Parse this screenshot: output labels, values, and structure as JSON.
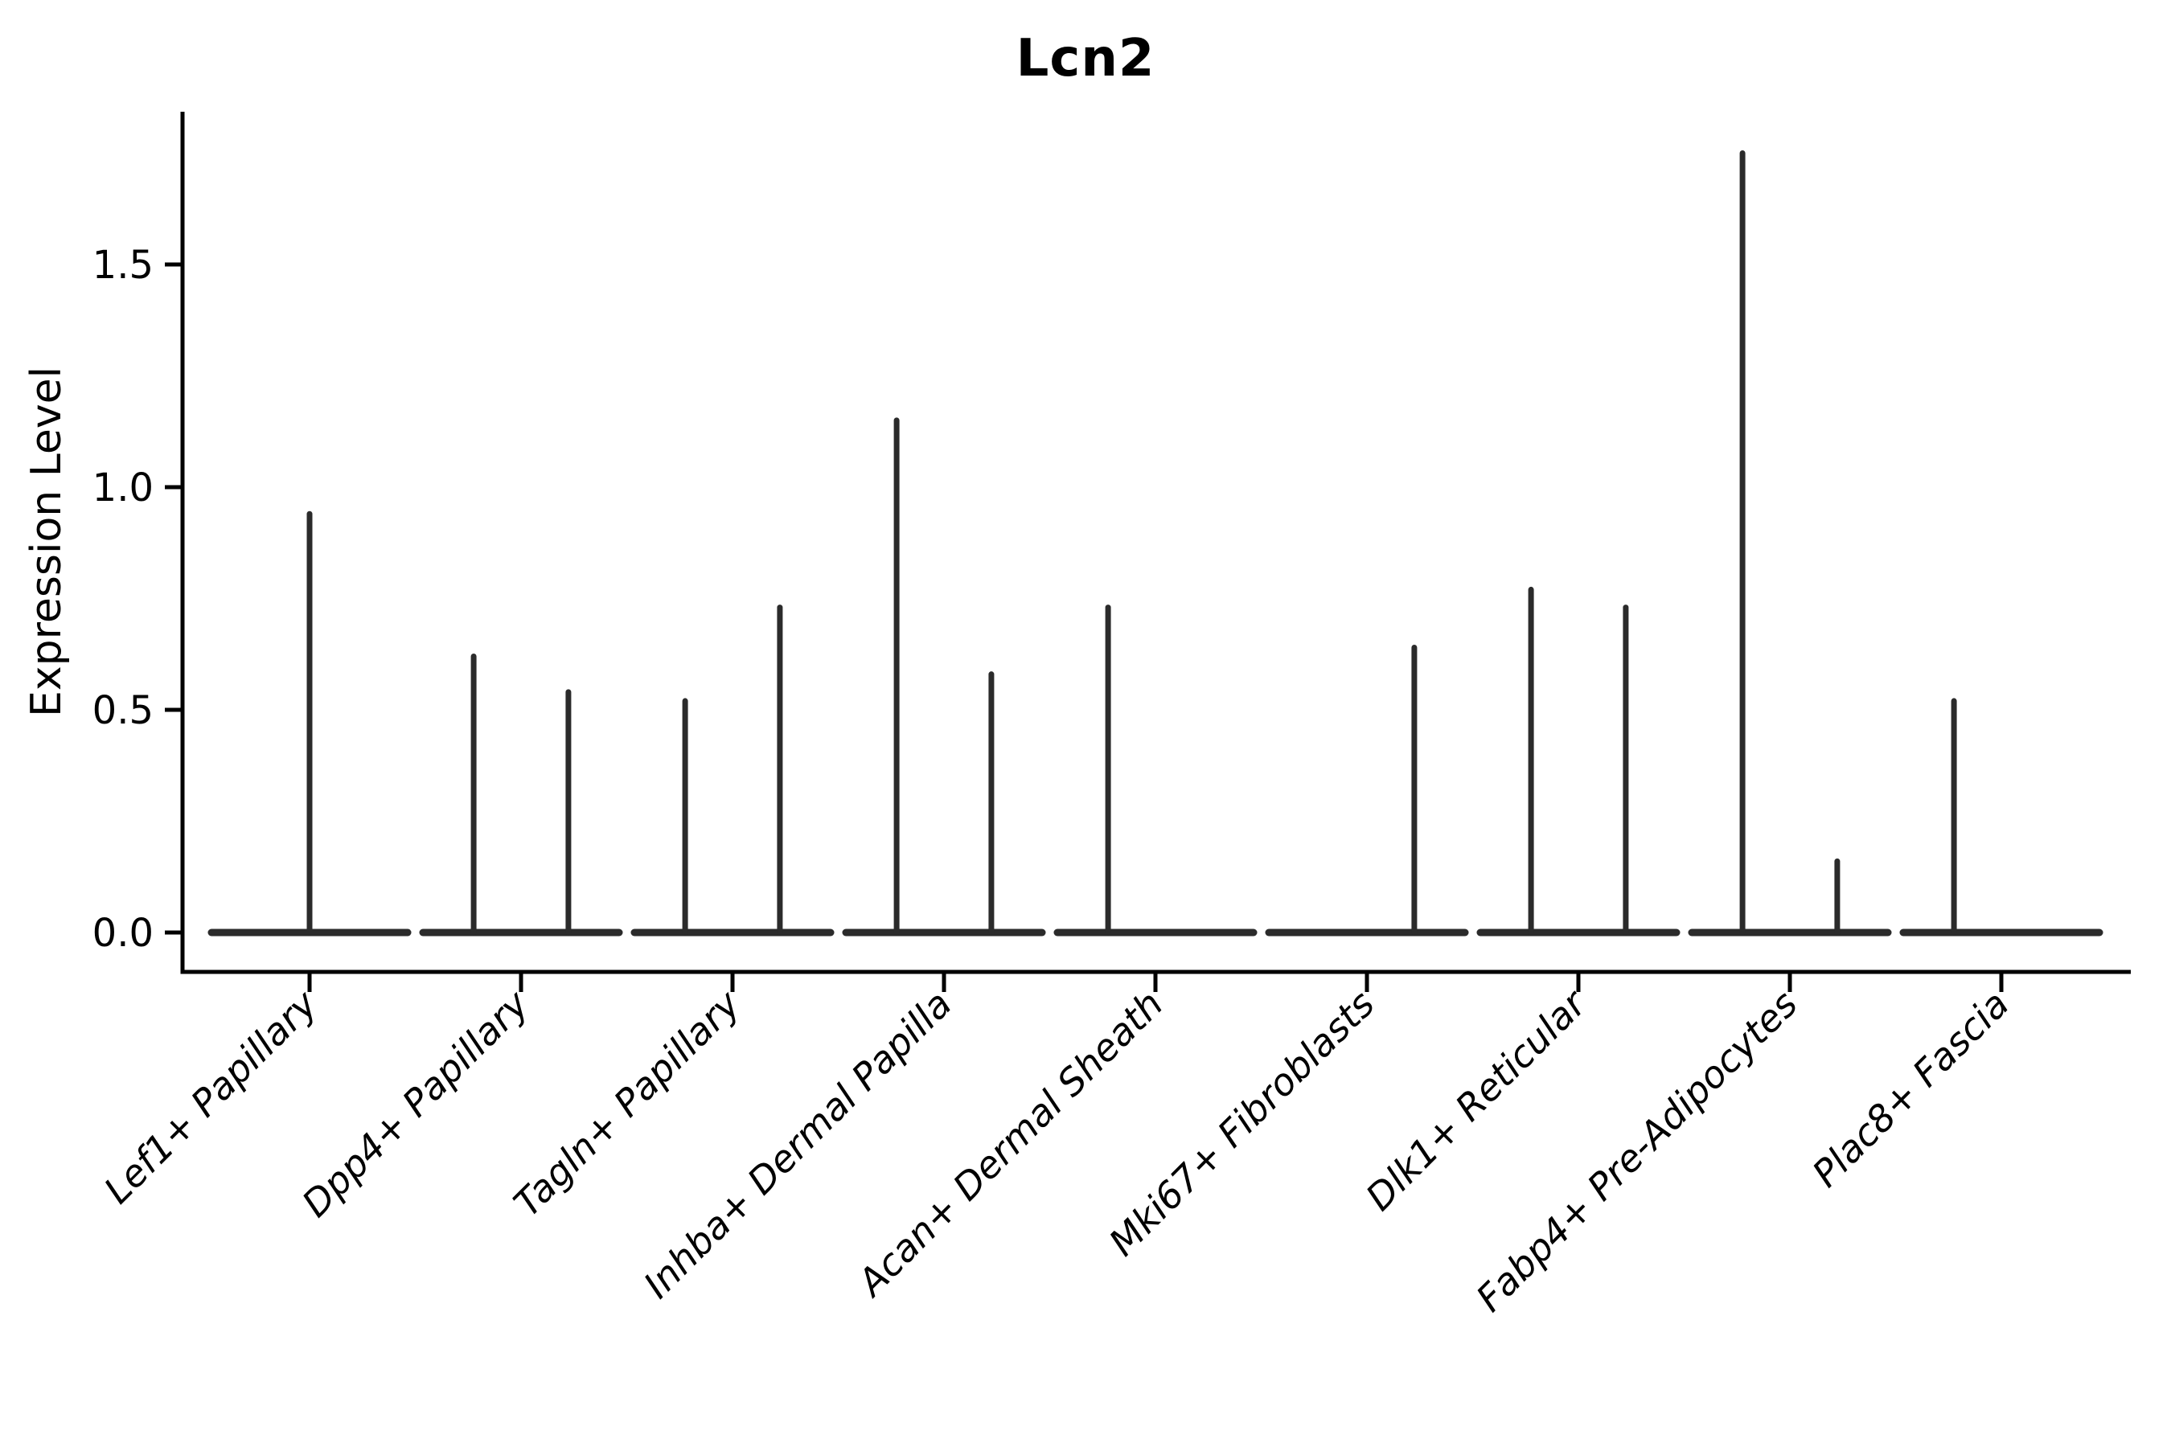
{
  "figure": {
    "background": "#ffffff",
    "axis_color": "#000000",
    "violin_color": "#2b2b2b",
    "tick_label_color": "#000000"
  },
  "chart_data": {
    "type": "violin",
    "title": "Lcn2",
    "xlabel": "",
    "ylabel": "Expression Level",
    "ylim": [
      -0.09,
      1.84
    ],
    "yticks": [
      "0.0",
      "0.5",
      "1.0",
      "1.5"
    ],
    "ytick_values": [
      0.0,
      0.5,
      1.0,
      1.5
    ],
    "grid": false,
    "legend": "none",
    "categories": [
      "Lef1+ Papillary",
      "Dpp4+ Papillary",
      "Tagln+ Papillary",
      "Inhba+ Dermal Papilla",
      "Acan+ Dermal Sheath",
      "Mki67+ Fibroblasts",
      "Dlk1+ Reticular",
      "Fabp4+ Pre-Adipocytes",
      "Plac8+ Fascia"
    ],
    "base_value": 0.0,
    "base_halfwidth_frac": 0.464,
    "series": [
      {
        "category": "Lef1+ Papillary",
        "spikes": [
          {
            "offset_frac": 0.0,
            "max_expression": 0.94
          }
        ]
      },
      {
        "category": "Dpp4+ Papillary",
        "spikes": [
          {
            "offset_frac": -0.224,
            "max_expression": 0.62
          },
          {
            "offset_frac": 0.224,
            "max_expression": 0.54
          }
        ]
      },
      {
        "category": "Tagln+ Papillary",
        "spikes": [
          {
            "offset_frac": -0.224,
            "max_expression": 0.52
          },
          {
            "offset_frac": 0.224,
            "max_expression": 0.73
          }
        ]
      },
      {
        "category": "Inhba+ Dermal Papilla",
        "spikes": [
          {
            "offset_frac": -0.224,
            "max_expression": 1.15
          },
          {
            "offset_frac": 0.224,
            "max_expression": 0.58
          }
        ]
      },
      {
        "category": "Acan+ Dermal Sheath",
        "spikes": [
          {
            "offset_frac": -0.224,
            "max_expression": 0.73
          }
        ]
      },
      {
        "category": "Mki67+ Fibroblasts",
        "spikes": [
          {
            "offset_frac": 0.224,
            "max_expression": 0.64
          }
        ]
      },
      {
        "category": "Dlk1+ Reticular",
        "spikes": [
          {
            "offset_frac": -0.224,
            "max_expression": 0.77
          },
          {
            "offset_frac": 0.224,
            "max_expression": 0.73
          }
        ]
      },
      {
        "category": "Fabp4+ Pre-Adipocytes",
        "spikes": [
          {
            "offset_frac": -0.224,
            "max_expression": 1.75
          },
          {
            "offset_frac": 0.224,
            "max_expression": 0.16
          }
        ]
      },
      {
        "category": "Plac8+ Fascia",
        "spikes": [
          {
            "offset_frac": -0.224,
            "max_expression": 0.52
          }
        ]
      }
    ]
  }
}
